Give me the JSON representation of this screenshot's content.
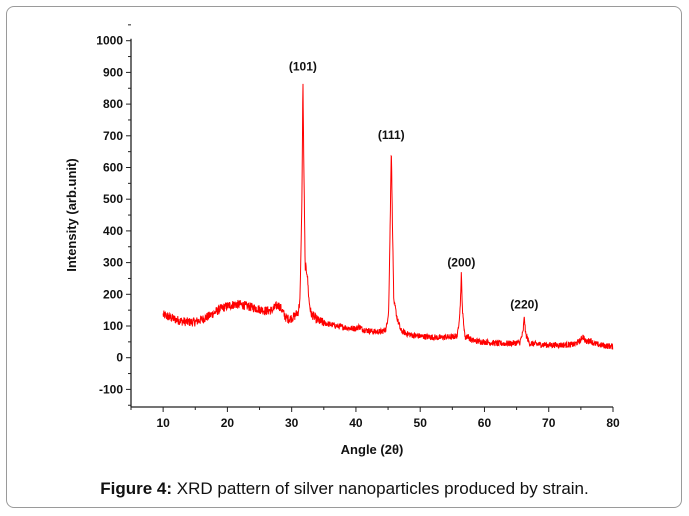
{
  "chart_data": {
    "type": "line",
    "xlabel": "Angle (2θ)",
    "ylabel": "Intensity (arb.unit)",
    "xlim": [
      5,
      80
    ],
    "ylim": [
      -155,
      1000
    ],
    "xticks": [
      10,
      20,
      30,
      40,
      50,
      60,
      70,
      80
    ],
    "yticks": [
      -100,
      0,
      100,
      200,
      300,
      400,
      500,
      600,
      700,
      800,
      900,
      1000
    ],
    "grid": false,
    "line_color": "#ff0000",
    "series": [
      {
        "x": [
          10,
          11,
          12,
          13,
          14,
          15,
          16,
          17,
          18,
          19,
          20,
          21,
          22,
          23,
          24,
          25,
          26,
          27,
          27.5,
          28,
          28.5,
          29,
          29.5,
          30,
          30.5,
          31,
          31.3,
          31.6,
          31.75,
          31.9,
          32.1,
          32.4,
          32.7,
          33,
          34,
          35,
          36,
          37,
          38,
          39,
          40,
          40.5,
          41,
          42,
          43,
          44,
          44.7,
          45.1,
          45.35,
          45.5,
          45.7,
          45.9,
          46.1,
          46.4,
          47,
          48,
          49,
          50,
          51,
          52,
          53,
          54,
          55,
          55.8,
          56.2,
          56.4,
          56.6,
          57,
          57.3,
          58,
          59,
          60,
          62,
          64,
          65.5,
          66,
          66.2,
          66.4,
          67,
          68,
          70,
          72,
          74,
          75,
          75.3,
          75.8,
          76.5,
          77,
          78,
          80
        ],
        "y": [
          135,
          128,
          120,
          115,
          112,
          113,
          120,
          130,
          142,
          155,
          163,
          168,
          168,
          163,
          158,
          153,
          148,
          150,
          162,
          165,
          150,
          128,
          122,
          125,
          132,
          145,
          180,
          500,
          880,
          600,
          290,
          270,
          180,
          140,
          118,
          110,
          105,
          100,
          97,
          93,
          92,
          98,
          90,
          85,
          82,
          82,
          90,
          150,
          450,
          665,
          400,
          170,
          160,
          125,
          85,
          75,
          70,
          68,
          66,
          65,
          63,
          65,
          65,
          70,
          150,
          262,
          140,
          62,
          70,
          55,
          52,
          50,
          45,
          45,
          48,
          80,
          130,
          75,
          45,
          43,
          40,
          40,
          42,
          55,
          68,
          50,
          55,
          45,
          40,
          35
        ]
      }
    ],
    "annotations": [
      {
        "text": "(101)",
        "x": 31.75,
        "y": 880
      },
      {
        "text": "(111)",
        "x": 45.5,
        "y": 665
      },
      {
        "text": "(200)",
        "x": 56.4,
        "y": 262
      },
      {
        "text": "(220)",
        "x": 66.2,
        "y": 130
      }
    ]
  },
  "caption": {
    "label": "Figure 4:",
    "text": " XRD pattern of silver nanoparticles produced by strain."
  }
}
